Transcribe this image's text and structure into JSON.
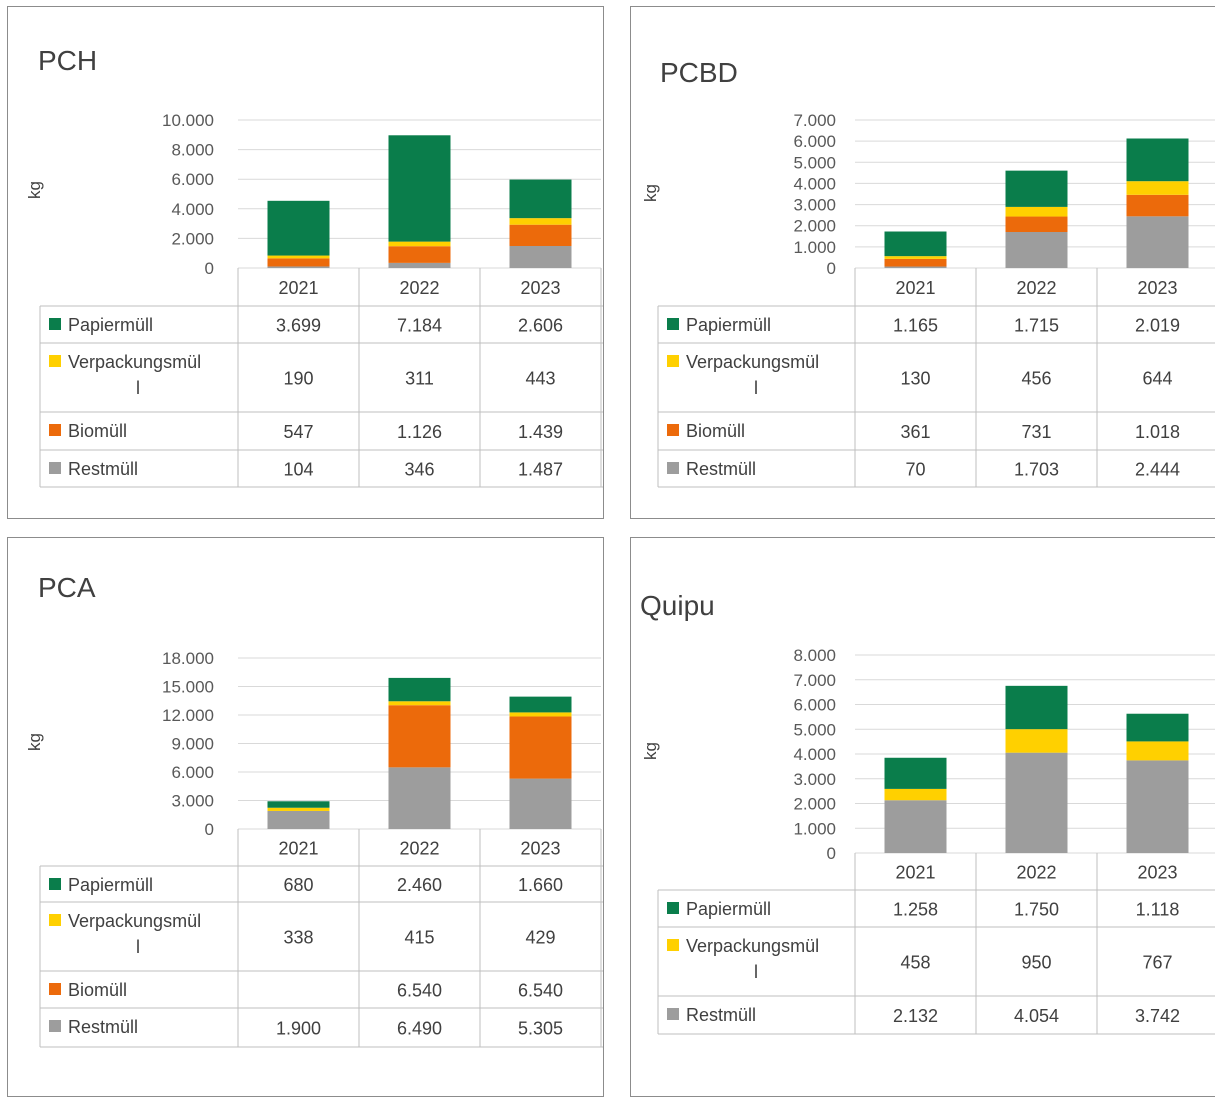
{
  "colors": {
    "Papiermüll": "#0a7d4b",
    "Verpackungsmüll": "#ffd000",
    "Biomüll": "#ec6a0b",
    "Restmüll": "#9d9d9d"
  },
  "chart_data": [
    {
      "type": "bar",
      "stacked": true,
      "title": "PCH",
      "ylabel": "kg",
      "categories": [
        "2021",
        "2022",
        "2023"
      ],
      "ylim": [
        0,
        10000
      ],
      "ticks": [
        0,
        2000,
        4000,
        6000,
        8000,
        10000
      ],
      "tick_labels": [
        "0",
        "2.000",
        "4.000",
        "6.000",
        "8.000",
        "10.000"
      ],
      "grid": true,
      "legend": "data-table",
      "series": [
        {
          "name": "Papiermüll",
          "values": [
            3699,
            7184,
            2606
          ],
          "labels": [
            "3.699",
            "7.184",
            "2.606"
          ]
        },
        {
          "name": "Verpackungsmüll",
          "values": [
            190,
            311,
            443
          ],
          "labels": [
            "190",
            "311",
            "443"
          ]
        },
        {
          "name": "Biomüll",
          "values": [
            547,
            1126,
            1439
          ],
          "labels": [
            "547",
            "1.126",
            "1.439"
          ]
        },
        {
          "name": "Restmüll",
          "values": [
            104,
            346,
            1487
          ],
          "labels": [
            "104",
            "346",
            "1.487"
          ]
        }
      ]
    },
    {
      "type": "bar",
      "stacked": true,
      "title": "PCBD",
      "ylabel": "kg",
      "categories": [
        "2021",
        "2022",
        "2023"
      ],
      "ylim": [
        0,
        7000
      ],
      "ticks": [
        0,
        1000,
        2000,
        3000,
        4000,
        5000,
        6000,
        7000
      ],
      "tick_labels": [
        "0",
        "1.000",
        "2.000",
        "3.000",
        "4.000",
        "5.000",
        "6.000",
        "7.000"
      ],
      "grid": true,
      "legend": "data-table",
      "series": [
        {
          "name": "Papiermüll",
          "values": [
            1165,
            1715,
            2019
          ],
          "labels": [
            "1.165",
            "1.715",
            "2.019"
          ]
        },
        {
          "name": "Verpackungsmüll",
          "values": [
            130,
            456,
            644
          ],
          "labels": [
            "130",
            "456",
            "644"
          ]
        },
        {
          "name": "Biomüll",
          "values": [
            361,
            731,
            1018
          ],
          "labels": [
            "361",
            "731",
            "1.018"
          ]
        },
        {
          "name": "Restmüll",
          "values": [
            70,
            1703,
            2444
          ],
          "labels": [
            "70",
            "1.703",
            "2.444"
          ]
        }
      ]
    },
    {
      "type": "bar",
      "stacked": true,
      "title": "PCA",
      "ylabel": "kg",
      "categories": [
        "2021",
        "2022",
        "2023"
      ],
      "ylim": [
        0,
        18000
      ],
      "ticks": [
        0,
        3000,
        6000,
        9000,
        12000,
        15000,
        18000
      ],
      "tick_labels": [
        "0",
        "3.000",
        "6.000",
        "9.000",
        "12.000",
        "15.000",
        "18.000"
      ],
      "grid": true,
      "legend": "data-table",
      "series": [
        {
          "name": "Papiermüll",
          "values": [
            680,
            2460,
            1660
          ],
          "labels": [
            "680",
            "2.460",
            "1.660"
          ]
        },
        {
          "name": "Verpackungsmüll",
          "values": [
            338,
            415,
            429
          ],
          "labels": [
            "338",
            "415",
            "429"
          ]
        },
        {
          "name": "Biomüll",
          "values": [
            null,
            6540,
            6540
          ],
          "labels": [
            "",
            "6.540",
            "6.540"
          ]
        },
        {
          "name": "Restmüll",
          "values": [
            1900,
            6490,
            5305
          ],
          "labels": [
            "1.900",
            "6.490",
            "5.305"
          ]
        }
      ]
    },
    {
      "type": "bar",
      "stacked": true,
      "title": "Quipu",
      "ylabel": "kg",
      "categories": [
        "2021",
        "2022",
        "2023"
      ],
      "ylim": [
        0,
        8000
      ],
      "ticks": [
        0,
        1000,
        2000,
        3000,
        4000,
        5000,
        6000,
        7000,
        8000
      ],
      "tick_labels": [
        "0",
        "1.000",
        "2.000",
        "3.000",
        "4.000",
        "5.000",
        "6.000",
        "7.000",
        "8.000"
      ],
      "grid": true,
      "legend": "data-table",
      "series": [
        {
          "name": "Papiermüll",
          "values": [
            1258,
            1750,
            1118
          ],
          "labels": [
            "1.258",
            "1.750",
            "1.118"
          ]
        },
        {
          "name": "Verpackungsmüll",
          "values": [
            458,
            950,
            767
          ],
          "labels": [
            "458",
            "950",
            "767"
          ]
        },
        {
          "name": "Restmüll",
          "values": [
            2132,
            4054,
            3742
          ],
          "labels": [
            "2.132",
            "4.054",
            "3.742"
          ]
        }
      ]
    }
  ]
}
